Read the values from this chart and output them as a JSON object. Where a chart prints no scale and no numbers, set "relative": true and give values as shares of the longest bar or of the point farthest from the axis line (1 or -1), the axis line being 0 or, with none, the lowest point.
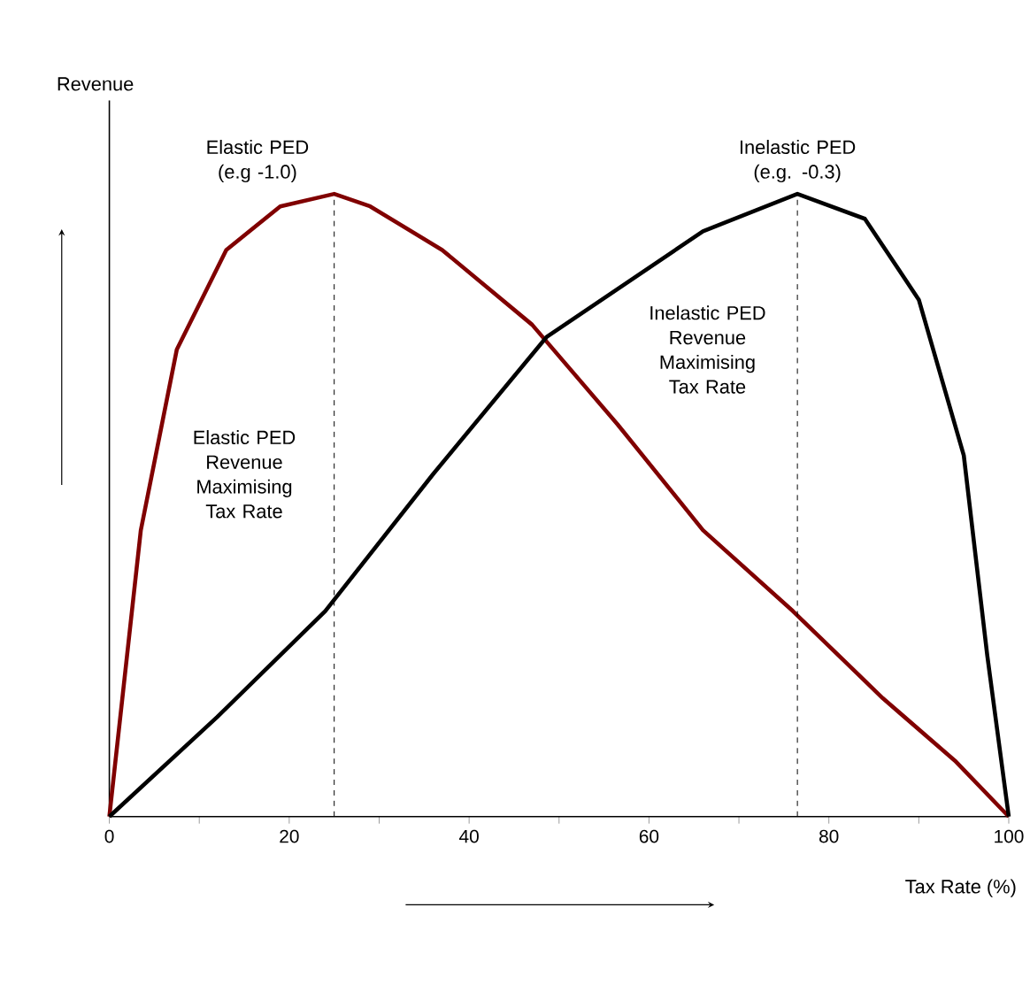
{
  "chart_data": {
    "type": "line",
    "relative": true,
    "xlabel": "Tax Rate (%)",
    "xlim": [
      0,
      100
    ],
    "xticks": [
      0,
      {
        "value": 10,
        "label": null
      },
      20,
      {
        "value": 30,
        "label": null
      },
      40,
      {
        "value": 50,
        "label": null
      },
      60,
      {
        "value": 70,
        "label": null
      },
      80,
      {
        "value": 90,
        "label": null
      },
      100
    ],
    "grid": false,
    "marker": "none",
    "line_style": "solid",
    "series": [
      {
        "color": "#800000",
        "x": [
          0,
          3.5,
          7.5,
          13,
          19,
          25,
          29,
          37,
          47,
          56.5,
          66,
          76,
          86,
          94,
          100
        ],
        "values": [
          0,
          0.46,
          0.75,
          0.91,
          0.98,
          1.0,
          0.98,
          0.91,
          0.79,
          0.63,
          0.46,
          0.33,
          0.19,
          0.09,
          0
        ]
      },
      {
        "color": "#000000",
        "x": [
          0,
          12,
          24,
          36,
          48.6,
          66,
          76.5,
          84,
          90,
          95,
          97.6,
          100
        ],
        "values": [
          0,
          0.16,
          0.33,
          0.55,
          0.77,
          0.94,
          1.0,
          0.96,
          0.83,
          0.58,
          0.26,
          0
        ]
      }
    ],
    "ref_lines": [
      {
        "axis": "x",
        "value": 25,
        "label": "Elastic PED Revenue Maximising Tax Rate",
        "line_style": "dashed",
        "color": "#000000"
      },
      {
        "axis": "x",
        "value": 76.5,
        "label": "Inelastic PED Revenue Maximising Tax Rate",
        "line_style": "dashed",
        "color": "#000000"
      }
    ],
    "annotations": [
      {
        "text": "Elastic PED (e.g -1.0)",
        "x": 25,
        "y": 1
      },
      {
        "text": "Inelastic PED (e.g. -0.3)",
        "x": 76.5,
        "y": 1
      },
      "Revenue"
    ]
  }
}
